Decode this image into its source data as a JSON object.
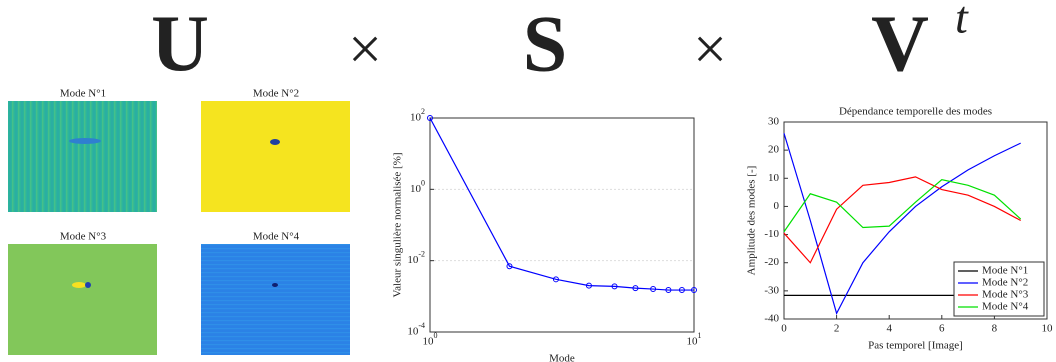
{
  "equation": {
    "terms": [
      "U",
      "S",
      "V"
    ],
    "operator": "×",
    "superscript": "t"
  },
  "modes": [
    {
      "title": "Mode N°1"
    },
    {
      "title": "Mode N°2"
    },
    {
      "title": "Mode N°3"
    },
    {
      "title": "Mode N°4"
    }
  ],
  "chart_data": [
    {
      "type": "line",
      "log_x": true,
      "log_y": true,
      "grid": true,
      "markers": true,
      "x_label": "Mode",
      "y_label": "Valeur singulière normalisée [%]",
      "x": [
        1,
        2,
        3,
        4,
        5,
        6,
        7,
        8,
        9,
        10
      ],
      "series": [
        {
          "name": "Valeur singulière",
          "color": "#0000ff",
          "values": [
            100,
            0.007,
            0.003,
            0.002,
            0.0019,
            0.0017,
            0.0016,
            0.0015,
            0.0015,
            0.0015
          ]
        }
      ],
      "xlim": [
        1,
        10
      ],
      "ylim": [
        0.0001,
        100
      ],
      "xticks": [
        {
          "value": 1,
          "label": "10^0"
        },
        {
          "value": 10,
          "label": "10^1"
        }
      ],
      "yticks": [
        {
          "value": 0.0001,
          "label": "10^-4"
        },
        {
          "value": 0.01,
          "label": "10^-2"
        },
        {
          "value": 1,
          "label": "10^0"
        },
        {
          "value": 100,
          "label": "10^2"
        }
      ]
    },
    {
      "type": "line",
      "title": "Dépendance temporelle des modes",
      "grid": false,
      "legend": "lower right",
      "x_label": "Pas temporel [Image]",
      "y_label": "Amplitude des modes [-]",
      "x": [
        0,
        1,
        2,
        3,
        4,
        5,
        6,
        7,
        8,
        9
      ],
      "series": [
        {
          "name": "Mode N°1",
          "color": "#000000",
          "values": [
            -31.6,
            -31.6,
            -31.6,
            -31.6,
            -31.6,
            -31.6,
            -31.6,
            -31.6,
            -31.6,
            -31.6
          ]
        },
        {
          "name": "Mode N°2",
          "color": "#0000ff",
          "values": [
            26,
            -5,
            -38,
            -20,
            -9,
            0,
            7,
            13,
            18,
            22.5
          ]
        },
        {
          "name": "Mode N°3",
          "color": "#ff0000",
          "values": [
            -9.5,
            -20,
            -1,
            7.5,
            8.5,
            10.5,
            6,
            4,
            0,
            -5
          ]
        },
        {
          "name": "Mode N°4",
          "color": "#00e000",
          "values": [
            -9,
            4.5,
            1.5,
            -7.5,
            -7,
            1.5,
            9.5,
            7.5,
            4,
            -4.5
          ]
        }
      ],
      "xlim": [
        0,
        10
      ],
      "ylim": [
        -40,
        30
      ],
      "xticks": [
        0,
        2,
        4,
        6,
        8,
        10
      ],
      "yticks": [
        -40,
        -30,
        -20,
        -10,
        0,
        10,
        20,
        30
      ]
    }
  ]
}
